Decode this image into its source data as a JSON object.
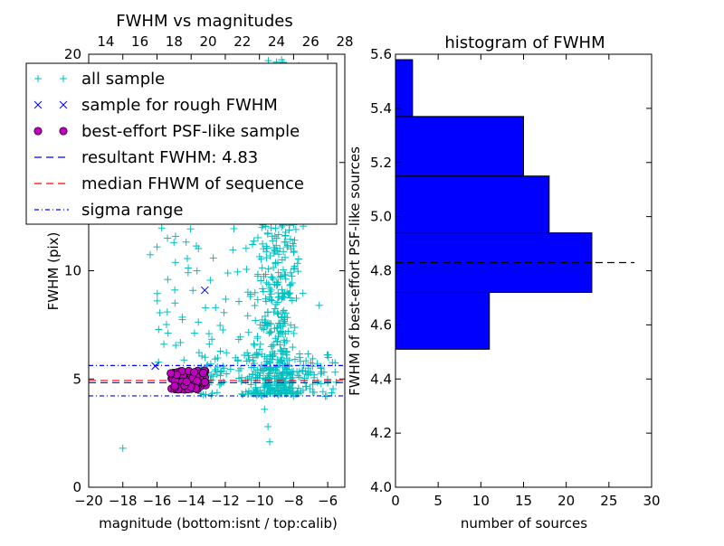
{
  "chart_data": [
    {
      "type": "scatter",
      "title": "FWHM vs magnitudes",
      "xlabel": "magnitude (bottom:isnt / top:calib)",
      "ylabel": "FWHM (pix)",
      "xlim": [
        -20,
        -5
      ],
      "ylim": [
        0,
        20
      ],
      "top_xlim": [
        13,
        28
      ],
      "x_ticks": [
        "−20",
        "−18",
        "−16",
        "−14",
        "−12",
        "−10",
        "−8",
        "−6"
      ],
      "x_tick_values": [
        -20,
        -18,
        -16,
        -14,
        -12,
        -10,
        -8,
        -6
      ],
      "top_ticks": [
        "14",
        "16",
        "18",
        "20",
        "22",
        "24",
        "26",
        "28"
      ],
      "top_tick_values": [
        14,
        16,
        18,
        20,
        22,
        24,
        26,
        28
      ],
      "y_ticks": [
        "0",
        "5",
        "10",
        "15",
        "20"
      ],
      "y_tick_values": [
        0,
        5,
        10,
        15,
        20
      ],
      "legend_position": "upper-left",
      "legend": [
        {
          "label": "all sample",
          "marker": "plus",
          "color": "#00bfbf"
        },
        {
          "label": "sample for rough FWHM",
          "marker": "x",
          "color": "#0000ff"
        },
        {
          "label": "best-effort PSF-like sample",
          "marker": "circle",
          "color": "#bf00bf"
        },
        {
          "label": "resultant FWHM: 4.83",
          "marker": "dashed",
          "color": "#0000ff"
        },
        {
          "label": "median FHWM of sequence",
          "marker": "dashed",
          "color": "#ff0000"
        },
        {
          "label": "sigma range",
          "marker": "dashdot",
          "color": "#0000ff"
        }
      ],
      "rough_sample": [
        [
          -16.1,
          5.6
        ],
        [
          -13.2,
          9.1
        ]
      ],
      "resultant_fwhm": 4.83,
      "median_fwhm": 4.93,
      "sigma_range": [
        4.22,
        5.62
      ],
      "best_effort_x_range": [
        -15.2,
        -13.1
      ],
      "best_effort_y_range": [
        4.5,
        5.4
      ],
      "all_sample_description_clusters": [
        {
          "x_range": [
            -10.5,
            -7.5
          ],
          "y_range": [
            4.3,
            19.8
          ],
          "count": 600
        },
        {
          "x_range": [
            -13.5,
            -5.5
          ],
          "y_range": [
            4.2,
            6.2
          ],
          "count": 160
        },
        {
          "x_range": [
            -16.5,
            -11
          ],
          "y_range": [
            5.5,
            12
          ],
          "count": 60
        }
      ]
    },
    {
      "type": "bar",
      "orientation": "horizontal",
      "title": "histogram of FWHM",
      "xlabel": "number of sources",
      "ylabel": "FWHM of best-effort PSF-like sources",
      "xlim": [
        0,
        30
      ],
      "ylim": [
        4.0,
        5.6
      ],
      "x_ticks": [
        "0",
        "5",
        "10",
        "15",
        "20",
        "25",
        "30"
      ],
      "x_tick_values": [
        0,
        5,
        10,
        15,
        20,
        25,
        30
      ],
      "y_ticks": [
        "4.0",
        "4.2",
        "4.4",
        "4.6",
        "4.8",
        "5.0",
        "5.2",
        "5.4",
        "5.6"
      ],
      "y_tick_values": [
        4.0,
        4.2,
        4.4,
        4.6,
        4.8,
        5.0,
        5.2,
        5.4,
        5.6
      ],
      "bins": [
        {
          "low": 4.51,
          "high": 4.72,
          "count": 11
        },
        {
          "low": 4.72,
          "high": 4.94,
          "count": 23
        },
        {
          "low": 4.94,
          "high": 5.15,
          "count": 18
        },
        {
          "low": 5.15,
          "high": 5.37,
          "count": 15
        },
        {
          "low": 5.37,
          "high": 5.58,
          "count": 2
        }
      ],
      "bar_color": "#0000ff",
      "reference_line": 4.83,
      "reference_line_x_end": 28
    }
  ]
}
